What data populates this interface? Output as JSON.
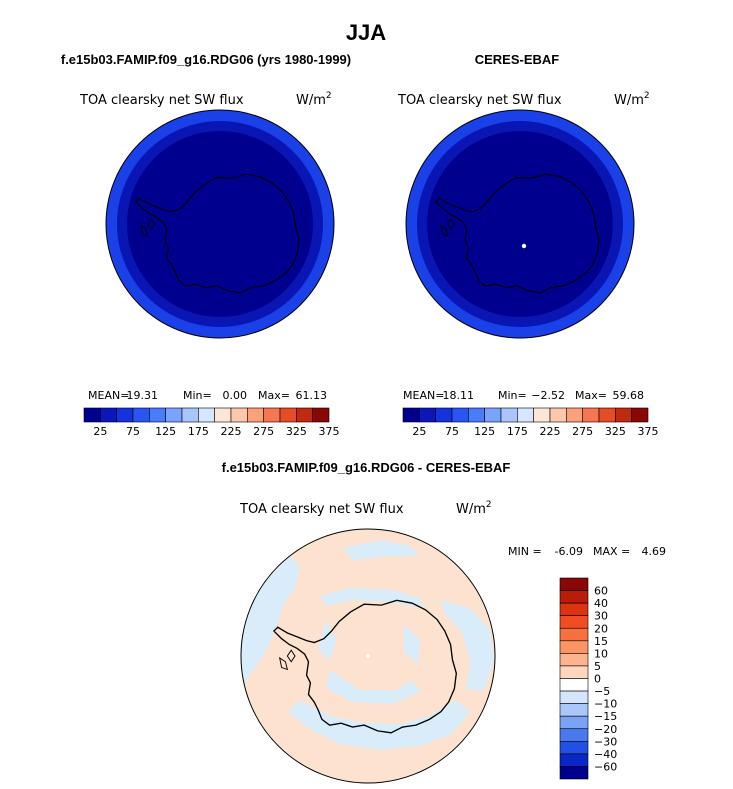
{
  "figure": {
    "season": "JJA"
  },
  "colors": {
    "deep": "#00008e",
    "inner": "#0a16b4",
    "outer": "#1a40e8",
    "diff_pos": "#fde3cf",
    "diff_neg": "#d8ecfa"
  },
  "chart_data": [
    {
      "type": "heatmap",
      "title": "f.e15b03.FAMIP.f09_g16.RDG06 (yrs 1980-1999)",
      "variable": "TOA clearsky net SW flux",
      "units_base": "W/m",
      "units_exp": "2",
      "stats": {
        "mean_label": "MEAN=",
        "mean": "19.31",
        "min_label": "Min=",
        "min": "0.00",
        "max_label": "Max=",
        "max": "61.13"
      },
      "colorbar": {
        "orientation": "horizontal",
        "tick_labels": [
          "25",
          "75",
          "125",
          "175",
          "225",
          "275",
          "325",
          "375"
        ],
        "colors": [
          "#00008e",
          "#0b17b8",
          "#1533dc",
          "#2a55f2",
          "#4a7bf8",
          "#7aa4fb",
          "#a8c6fd",
          "#d6e6fe",
          "#fde6d6",
          "#fcc7aa",
          "#faa07b",
          "#f57650",
          "#e64c28",
          "#bf2a10",
          "#8a0707"
        ]
      }
    },
    {
      "type": "heatmap",
      "title": "CERES-EBAF",
      "variable": "TOA clearsky net SW flux",
      "units_base": "W/m",
      "units_exp": "2",
      "stats": {
        "mean_label": "MEAN=",
        "mean": "18.11",
        "min_label": "Min=",
        "min": "−2.52",
        "max_label": "Max=",
        "max": "59.68"
      },
      "colorbar": {
        "orientation": "horizontal",
        "tick_labels": [
          "25",
          "75",
          "125",
          "175",
          "225",
          "275",
          "325",
          "375"
        ],
        "colors": [
          "#00008e",
          "#0b17b8",
          "#1533dc",
          "#2a55f2",
          "#4a7bf8",
          "#7aa4fb",
          "#a8c6fd",
          "#d6e6fe",
          "#fde6d6",
          "#fcc7aa",
          "#faa07b",
          "#f57650",
          "#e64c28",
          "#bf2a10",
          "#8a0707"
        ]
      }
    },
    {
      "type": "heatmap",
      "title": "f.e15b03.FAMIP.f09_g16.RDG06 - CERES-EBAF",
      "variable": "TOA clearsky net SW flux",
      "units_base": "W/m",
      "units_exp": "2",
      "stats": {
        "min_label": "MIN =",
        "min": "-6.09",
        "max_label": "MAX =",
        "max": "4.69"
      },
      "colorbar": {
        "orientation": "vertical",
        "tick_labels": [
          "60",
          "40",
          "30",
          "20",
          "15",
          "10",
          "5",
          "0",
          "−5",
          "−10",
          "−15",
          "−20",
          "−30",
          "−40",
          "−60"
        ],
        "colors": [
          "#8a0707",
          "#b81d0a",
          "#dc3410",
          "#f04d22",
          "#f7703d",
          "#fb9563",
          "#fdb38e",
          "#fdd6bd",
          "#ffffff",
          "#d4e6fb",
          "#a9c8f8",
          "#7aa3f4",
          "#4a78ee",
          "#2350e4",
          "#0a26c4",
          "#00008e"
        ]
      }
    }
  ]
}
